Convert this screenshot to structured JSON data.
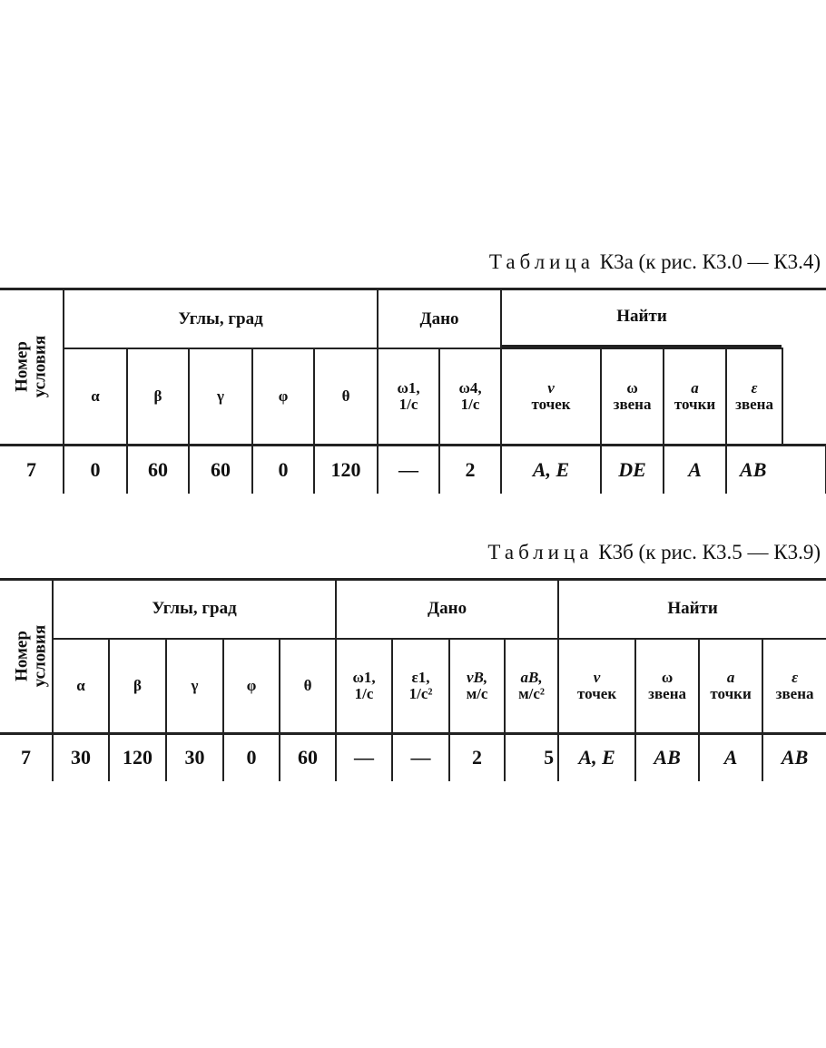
{
  "table_a": {
    "title_word": "Таблица",
    "title_rest": "К3а (к рис. К3.0 — К3.4)",
    "row_header": [
      "Номер",
      "условия"
    ],
    "groups": [
      "Углы, град",
      "Дано",
      "Найти"
    ],
    "angles": [
      "α",
      "β",
      "γ",
      "φ",
      "θ"
    ],
    "given": [
      [
        "ω1,",
        "1/c"
      ],
      [
        "ω4,",
        "1/c"
      ]
    ],
    "find": [
      [
        "v",
        "точек"
      ],
      [
        "ω",
        "звена"
      ],
      [
        "a",
        "точки"
      ],
      [
        "ε",
        "звена"
      ]
    ],
    "row": {
      "num": "7",
      "angles": [
        "0",
        "60",
        "60",
        "0",
        "120"
      ],
      "given": [
        "—",
        "2"
      ],
      "find": [
        "A, E",
        "DE",
        "A",
        "AB"
      ]
    }
  },
  "table_b": {
    "title_word": "Таблица",
    "title_rest": "К3б (к рис. К3.5 — К3.9)",
    "row_header": [
      "Номер",
      "условия"
    ],
    "groups": [
      "Углы, град",
      "Дано",
      "Найти"
    ],
    "angles": [
      "α",
      "β",
      "γ",
      "φ",
      "θ"
    ],
    "given": [
      [
        "ω1,",
        "1/c"
      ],
      [
        "ε1,",
        "1/c²"
      ],
      [
        "vB,",
        "м/c"
      ],
      [
        "aB,",
        "м/c²"
      ]
    ],
    "find": [
      [
        "v",
        "точек"
      ],
      [
        "ω",
        "звена"
      ],
      [
        "a",
        "точки"
      ],
      [
        "ε",
        "звена"
      ]
    ],
    "row": {
      "num": "7",
      "angles": [
        "30",
        "120",
        "30",
        "0",
        "60"
      ],
      "given": [
        "—",
        "—",
        "2",
        "5"
      ],
      "find": [
        "A, E",
        "AB",
        "A",
        "AB"
      ]
    }
  }
}
